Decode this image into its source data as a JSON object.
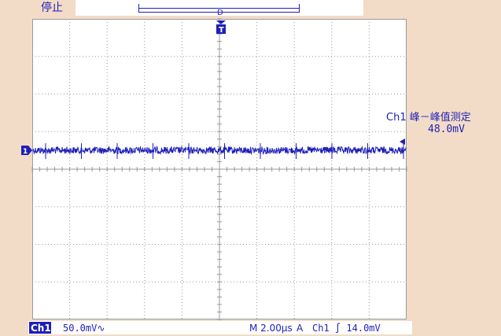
{
  "status": {
    "run_state": "停止"
  },
  "measurement": {
    "label": "Ch1 峰－峰值测定",
    "value": "48.0mV"
  },
  "channel": {
    "name": "Ch1",
    "scale": "50.0mV∿"
  },
  "timebase": {
    "value": "M 2.00µs"
  },
  "trigger": {
    "mode": "A",
    "source": "Ch1",
    "slope_symbol": "∫",
    "level": "14.0mV"
  },
  "colors": {
    "background": "#f2dcc7",
    "trace": "#1f1fb8",
    "graticule": "#9a9a9a",
    "screen": "#ffffff"
  },
  "icons": {
    "trigger_position_marker": "trigger-T-marker-icon",
    "channel_ground_marker": "channel-1-marker-icon",
    "trigger_level_marker": "trigger-level-arrow-icon"
  }
}
